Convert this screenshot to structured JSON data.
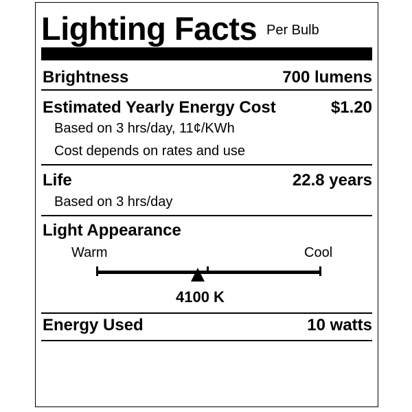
{
  "header": {
    "title": "Lighting Facts",
    "subtitle": "Per Bulb"
  },
  "brightness": {
    "label": "Brightness",
    "value": "700 lumens"
  },
  "energy_cost": {
    "label": "Estimated Yearly Energy Cost",
    "value": "$1.20",
    "notes": [
      "Based on 3 hrs/day, 11¢/KWh",
      "Cost depends on rates and use"
    ]
  },
  "life": {
    "label": "Life",
    "value": "22.8 years",
    "note": "Based on 3 hrs/day"
  },
  "light_appearance": {
    "label": "Light Appearance",
    "warm_label": "Warm",
    "cool_label": "Cool",
    "value": "4100 K",
    "marker_fraction": 0.45
  },
  "energy_used": {
    "label": "Energy Used",
    "value": "10 watts"
  }
}
